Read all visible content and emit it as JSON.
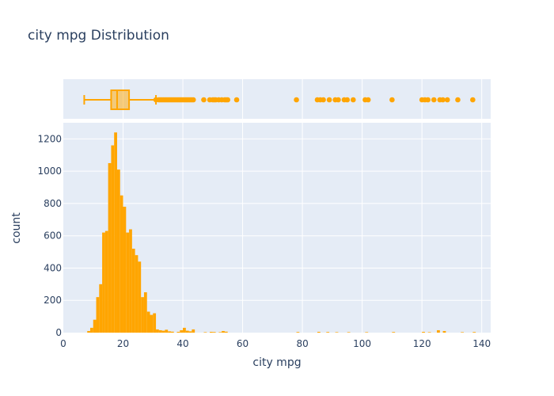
{
  "chart_data": {
    "type": "histogram",
    "title": "city mpg Distribution",
    "xlabel": "city mpg",
    "ylabel": "count",
    "xlim": [
      0,
      143
    ],
    "ylim": [
      0,
      1300
    ],
    "xticks": [
      0,
      20,
      40,
      60,
      80,
      100,
      120,
      140
    ],
    "yticks": [
      0,
      200,
      400,
      600,
      800,
      1000,
      1200
    ],
    "bin_width": 1,
    "color": "#FFA500",
    "plot_bg": "#E5ECF6",
    "grid_color": "#ffffff",
    "text_color": "#2a3f5f",
    "bins": [
      {
        "x": 8,
        "y": 10
      },
      {
        "x": 9,
        "y": 30
      },
      {
        "x": 10,
        "y": 80
      },
      {
        "x": 11,
        "y": 220
      },
      {
        "x": 12,
        "y": 300
      },
      {
        "x": 13,
        "y": 620
      },
      {
        "x": 14,
        "y": 630
      },
      {
        "x": 15,
        "y": 1050
      },
      {
        "x": 16,
        "y": 1160
      },
      {
        "x": 17,
        "y": 1240
      },
      {
        "x": 18,
        "y": 1010
      },
      {
        "x": 19,
        "y": 850
      },
      {
        "x": 20,
        "y": 780
      },
      {
        "x": 21,
        "y": 620
      },
      {
        "x": 22,
        "y": 640
      },
      {
        "x": 23,
        "y": 520
      },
      {
        "x": 24,
        "y": 480
      },
      {
        "x": 25,
        "y": 440
      },
      {
        "x": 26,
        "y": 220
      },
      {
        "x": 27,
        "y": 250
      },
      {
        "x": 28,
        "y": 130
      },
      {
        "x": 29,
        "y": 110
      },
      {
        "x": 30,
        "y": 120
      },
      {
        "x": 31,
        "y": 20
      },
      {
        "x": 32,
        "y": 15
      },
      {
        "x": 33,
        "y": 12
      },
      {
        "x": 34,
        "y": 18
      },
      {
        "x": 35,
        "y": 8
      },
      {
        "x": 36,
        "y": 6
      },
      {
        "x": 38,
        "y": 5
      },
      {
        "x": 39,
        "y": 15
      },
      {
        "x": 40,
        "y": 30
      },
      {
        "x": 41,
        "y": 12
      },
      {
        "x": 42,
        "y": 8
      },
      {
        "x": 43,
        "y": 20
      },
      {
        "x": 47,
        "y": 3
      },
      {
        "x": 49,
        "y": 5
      },
      {
        "x": 50,
        "y": 4
      },
      {
        "x": 52,
        "y": 3
      },
      {
        "x": 53,
        "y": 10
      },
      {
        "x": 54,
        "y": 6
      },
      {
        "x": 78,
        "y": 4
      },
      {
        "x": 85,
        "y": 5
      },
      {
        "x": 88,
        "y": 4
      },
      {
        "x": 91,
        "y": 3
      },
      {
        "x": 95,
        "y": 3
      },
      {
        "x": 101,
        "y": 3
      },
      {
        "x": 110,
        "y": 4
      },
      {
        "x": 120,
        "y": 5
      },
      {
        "x": 122,
        "y": 3
      },
      {
        "x": 125,
        "y": 15
      },
      {
        "x": 127,
        "y": 10
      },
      {
        "x": 133,
        "y": 3
      },
      {
        "x": 137,
        "y": 4
      }
    ],
    "box": {
      "min": 7,
      "q1": 16,
      "median": 18,
      "q3": 22,
      "upper_fence": 31,
      "outliers": [
        31,
        32,
        32.5,
        33,
        33.5,
        34,
        34.5,
        35,
        35.5,
        36,
        36.5,
        37,
        37.5,
        38,
        38.5,
        39,
        39.5,
        40,
        40.5,
        41,
        41.5,
        42,
        42.5,
        43,
        43.5,
        47,
        49,
        50,
        50.5,
        51,
        52,
        53,
        54,
        54.5,
        55,
        58,
        78,
        85,
        86,
        87,
        89,
        91,
        92,
        94,
        95,
        97,
        101,
        102,
        110,
        120,
        121,
        122,
        124,
        126,
        127,
        128.5,
        132,
        137
      ]
    }
  }
}
